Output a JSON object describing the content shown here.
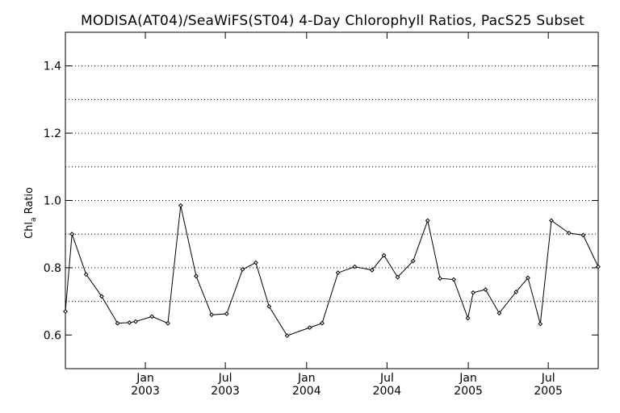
{
  "chart_data": {
    "type": "line",
    "title": "MODISA(AT04)/SeaWiFS(ST04) 4-Day Chlorophyll Ratios, PacS25 Subset",
    "ylabel": "Chl",
    "ylabel_subscript": "a",
    "ylabel_suffix": " Ratio",
    "xlim": [
      "2002-07-04",
      "2005-10-22"
    ],
    "ylim": [
      0.5,
      1.5
    ],
    "grid": true,
    "yticks": [
      {
        "value": 0.6,
        "label": "0.6"
      },
      {
        "value": 0.8,
        "label": "0.8"
      },
      {
        "value": 1.0,
        "label": "1.0"
      },
      {
        "value": 1.2,
        "label": "1.2"
      },
      {
        "value": 1.4,
        "label": "1.4"
      }
    ],
    "ygrid": [
      0.7,
      0.8,
      0.9,
      1.0,
      1.1,
      1.2,
      1.3,
      1.4
    ],
    "xticks": [
      {
        "date": "2003-01-01",
        "month": "Jan",
        "year": "2003"
      },
      {
        "date": "2003-07-01",
        "month": "Jul",
        "year": "2003"
      },
      {
        "date": "2004-01-01",
        "month": "Jan",
        "year": "2004"
      },
      {
        "date": "2004-07-01",
        "month": "Jul",
        "year": "2004"
      },
      {
        "date": "2005-01-01",
        "month": "Jan",
        "year": "2005"
      },
      {
        "date": "2005-07-01",
        "month": "Jul",
        "year": "2005"
      }
    ],
    "series": [
      {
        "color": "#000000",
        "points": [
          {
            "x": "2002-07-04",
            "y": 0.67
          },
          {
            "x": "2002-07-19",
            "y": 0.9
          },
          {
            "x": "2002-08-20",
            "y": 0.78
          },
          {
            "x": "2002-09-24",
            "y": 0.715
          },
          {
            "x": "2002-10-30",
            "y": 0.635
          },
          {
            "x": "2002-11-26",
            "y": 0.637
          },
          {
            "x": "2002-12-10",
            "y": 0.64
          },
          {
            "x": "2003-01-16",
            "y": 0.655
          },
          {
            "x": "2003-02-21",
            "y": 0.635
          },
          {
            "x": "2003-03-22",
            "y": 0.985
          },
          {
            "x": "2003-04-26",
            "y": 0.775
          },
          {
            "x": "2003-05-31",
            "y": 0.66
          },
          {
            "x": "2003-07-04",
            "y": 0.663
          },
          {
            "x": "2003-08-09",
            "y": 0.795
          },
          {
            "x": "2003-09-08",
            "y": 0.815
          },
          {
            "x": "2003-10-08",
            "y": 0.685
          },
          {
            "x": "2003-11-18",
            "y": 0.598
          },
          {
            "x": "2004-01-08",
            "y": 0.622
          },
          {
            "x": "2004-02-05",
            "y": 0.635
          },
          {
            "x": "2004-03-12",
            "y": 0.785
          },
          {
            "x": "2004-04-19",
            "y": 0.803
          },
          {
            "x": "2004-05-28",
            "y": 0.793
          },
          {
            "x": "2004-06-24",
            "y": 0.837
          },
          {
            "x": "2004-07-25",
            "y": 0.772
          },
          {
            "x": "2004-08-29",
            "y": 0.82
          },
          {
            "x": "2004-10-01",
            "y": 0.94
          },
          {
            "x": "2004-10-29",
            "y": 0.768
          },
          {
            "x": "2004-11-29",
            "y": 0.765
          },
          {
            "x": "2004-12-31",
            "y": 0.65
          },
          {
            "x": "2005-01-12",
            "y": 0.726
          },
          {
            "x": "2005-02-09",
            "y": 0.735
          },
          {
            "x": "2005-03-12",
            "y": 0.665
          },
          {
            "x": "2005-04-19",
            "y": 0.728
          },
          {
            "x": "2005-05-16",
            "y": 0.77
          },
          {
            "x": "2005-06-13",
            "y": 0.633
          },
          {
            "x": "2005-07-08",
            "y": 0.94
          },
          {
            "x": "2005-08-17",
            "y": 0.903
          },
          {
            "x": "2005-09-18",
            "y": 0.897
          },
          {
            "x": "2005-10-22",
            "y": 0.803
          }
        ]
      }
    ]
  }
}
